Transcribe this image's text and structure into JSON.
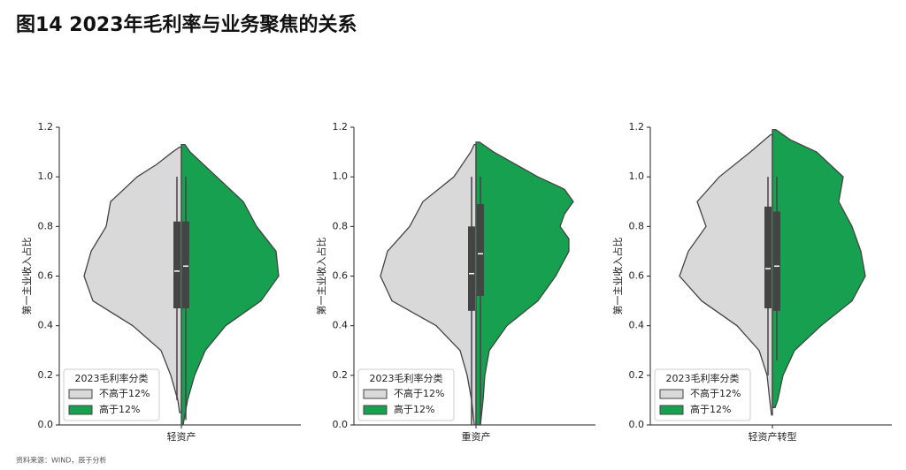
{
  "title": "图14 2023年毛利率与业务聚焦的关系",
  "source": "资料来源：WIND，辰于分析",
  "chart_data": [
    {
      "type": "violin",
      "xlabel": "轻资产",
      "ylabel": "第一主业收入占比",
      "ylim": [
        0,
        1.2
      ],
      "yticks": [
        {
          "value": 0,
          "label": "0.0"
        },
        0.2,
        0.4,
        0.6,
        0.8,
        {
          "value": 1,
          "label": "1.0"
        },
        1.2
      ],
      "legend": {
        "title": "2023毛利率分类",
        "loc": "lower left"
      },
      "series": [
        {
          "name": "不高于12%",
          "color": "#d9d9d9",
          "y": [
            0.05,
            0.1,
            0.2,
            0.3,
            0.4,
            0.5,
            0.6,
            0.7,
            0.8,
            0.9,
            1.0,
            1.05,
            1.1,
            1.12
          ],
          "density": [
            0.02,
            0.04,
            0.12,
            0.23,
            0.55,
            1.0,
            1.1,
            1.02,
            0.85,
            0.8,
            0.5,
            0.28,
            0.1,
            0.02
          ],
          "whisker": [
            0.1,
            1.0
          ],
          "quartiles": [
            0.47,
            0.82
          ],
          "median": 0.62
        },
        {
          "name": "高于12%",
          "color": "#16a050",
          "y": [
            0,
            0.1,
            0.2,
            0.3,
            0.4,
            0.5,
            0.6,
            0.7,
            0.8,
            0.9,
            1.0,
            1.1,
            1.13
          ],
          "density": [
            0.02,
            0.07,
            0.15,
            0.27,
            0.5,
            0.9,
            1.1,
            1.07,
            0.85,
            0.7,
            0.4,
            0.1,
            0.04
          ],
          "whisker": [
            0.02,
            1.0
          ],
          "quartiles": [
            0.47,
            0.82
          ],
          "median": 0.64
        }
      ]
    },
    {
      "type": "violin",
      "xlabel": "重资产",
      "ylabel": "第一主业收入占比",
      "ylim": [
        0,
        1.2
      ],
      "yticks": [
        {
          "value": 0,
          "label": "0.0"
        },
        0.2,
        0.4,
        0.6,
        0.8,
        {
          "value": 1,
          "label": "1.0"
        },
        1.2
      ],
      "legend": {
        "title": "2023毛利率分类",
        "loc": "lower left"
      },
      "series": [
        {
          "name": "不高于12%",
          "color": "#d9d9d9",
          "y": [
            0,
            0.1,
            0.2,
            0.3,
            0.4,
            0.5,
            0.6,
            0.7,
            0.8,
            0.9,
            1.0,
            1.1,
            1.13
          ],
          "density": [
            0.02,
            0.05,
            0.1,
            0.18,
            0.45,
            0.95,
            1.08,
            1.0,
            0.75,
            0.6,
            0.25,
            0.06,
            0.02
          ],
          "whisker": [
            0.0,
            1.0
          ],
          "quartiles": [
            0.46,
            0.8
          ],
          "median": 0.61
        },
        {
          "name": "高于12%",
          "color": "#16a050",
          "y": [
            0,
            0.1,
            0.2,
            0.3,
            0.4,
            0.5,
            0.6,
            0.7,
            0.75,
            0.8,
            0.85,
            0.9,
            0.95,
            1.0,
            1.1,
            1.14
          ],
          "density": [
            0.05,
            0.08,
            0.1,
            0.15,
            0.35,
            0.7,
            0.9,
            1.05,
            1.05,
            0.95,
            1.0,
            1.1,
            1.0,
            0.7,
            0.2,
            0.04
          ],
          "whisker": [
            0.0,
            1.0
          ],
          "quartiles": [
            0.52,
            0.89
          ],
          "median": 0.69
        }
      ]
    },
    {
      "type": "violin",
      "xlabel": "轻资产转型",
      "ylabel": "第一主业收入占比",
      "ylim": [
        0,
        1.2
      ],
      "yticks": [
        {
          "value": 0,
          "label": "0.0"
        },
        0.2,
        0.4,
        0.6,
        0.8,
        {
          "value": 1,
          "label": "1.0"
        },
        1.2
      ],
      "legend": {
        "title": "2023毛利率分类",
        "loc": "lower left"
      },
      "series": [
        {
          "name": "不高于12%",
          "color": "#d9d9d9",
          "y": [
            0.04,
            0.1,
            0.2,
            0.3,
            0.4,
            0.5,
            0.6,
            0.7,
            0.8,
            0.9,
            1.0,
            1.1,
            1.17
          ],
          "density": [
            0.01,
            0.03,
            0.06,
            0.15,
            0.4,
            0.8,
            1.05,
            0.95,
            0.75,
            0.85,
            0.6,
            0.25,
            0.02
          ],
          "whisker": [
            0.2,
            1.0
          ],
          "quartiles": [
            0.47,
            0.88
          ],
          "median": 0.63
        },
        {
          "name": "高于12%",
          "color": "#16a050",
          "y": [
            0.07,
            0.1,
            0.2,
            0.3,
            0.4,
            0.5,
            0.6,
            0.7,
            0.8,
            0.9,
            1.0,
            1.1,
            1.15,
            1.19
          ],
          "density": [
            0.03,
            0.06,
            0.12,
            0.25,
            0.55,
            0.9,
            1.05,
            1.0,
            0.9,
            0.75,
            0.8,
            0.5,
            0.2,
            0.04
          ],
          "whisker": [
            0.26,
            1.0
          ],
          "quartiles": [
            0.46,
            0.86
          ],
          "median": 0.64
        }
      ]
    }
  ]
}
